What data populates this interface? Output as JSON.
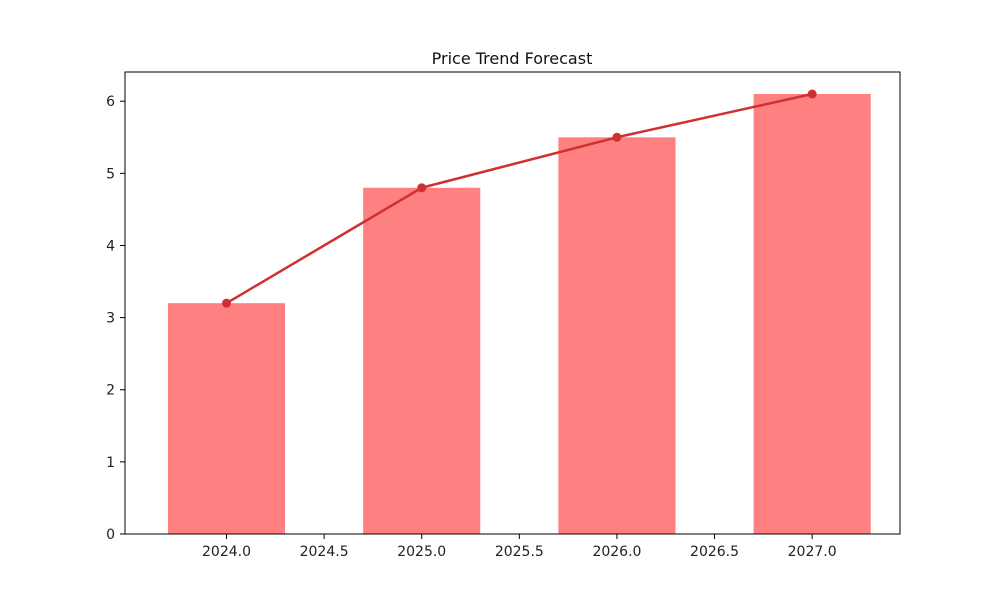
{
  "chart_data": {
    "type": "bar",
    "title": "Price Trend Forecast",
    "xlabel": "",
    "ylabel": "",
    "x": [
      2024.0,
      2025.0,
      2026.0,
      2027.0
    ],
    "xlim": [
      2023.48,
      2027.45
    ],
    "ylim": [
      0,
      6.405
    ],
    "xticks": [
      2024.0,
      2024.5,
      2025.0,
      2025.5,
      2026.0,
      2026.5,
      2027.0
    ],
    "xtick_labels": [
      "2024.0",
      "2024.5",
      "2025.0",
      "2025.5",
      "2026.0",
      "2026.5",
      "2027.0"
    ],
    "yticks": [
      0,
      1,
      2,
      3,
      4,
      5,
      6
    ],
    "ytick_labels": [
      "0",
      "1",
      "2",
      "3",
      "4",
      "5",
      "6"
    ],
    "bar_width": 0.6,
    "grid": false,
    "series": [
      {
        "type": "bar",
        "values": [
          3.2,
          4.8,
          5.5,
          6.1
        ],
        "color": "#ff8080"
      },
      {
        "type": "line",
        "values": [
          3.2,
          4.8,
          5.5,
          6.1
        ],
        "color": "#d03030",
        "marker": "circle"
      }
    ]
  }
}
